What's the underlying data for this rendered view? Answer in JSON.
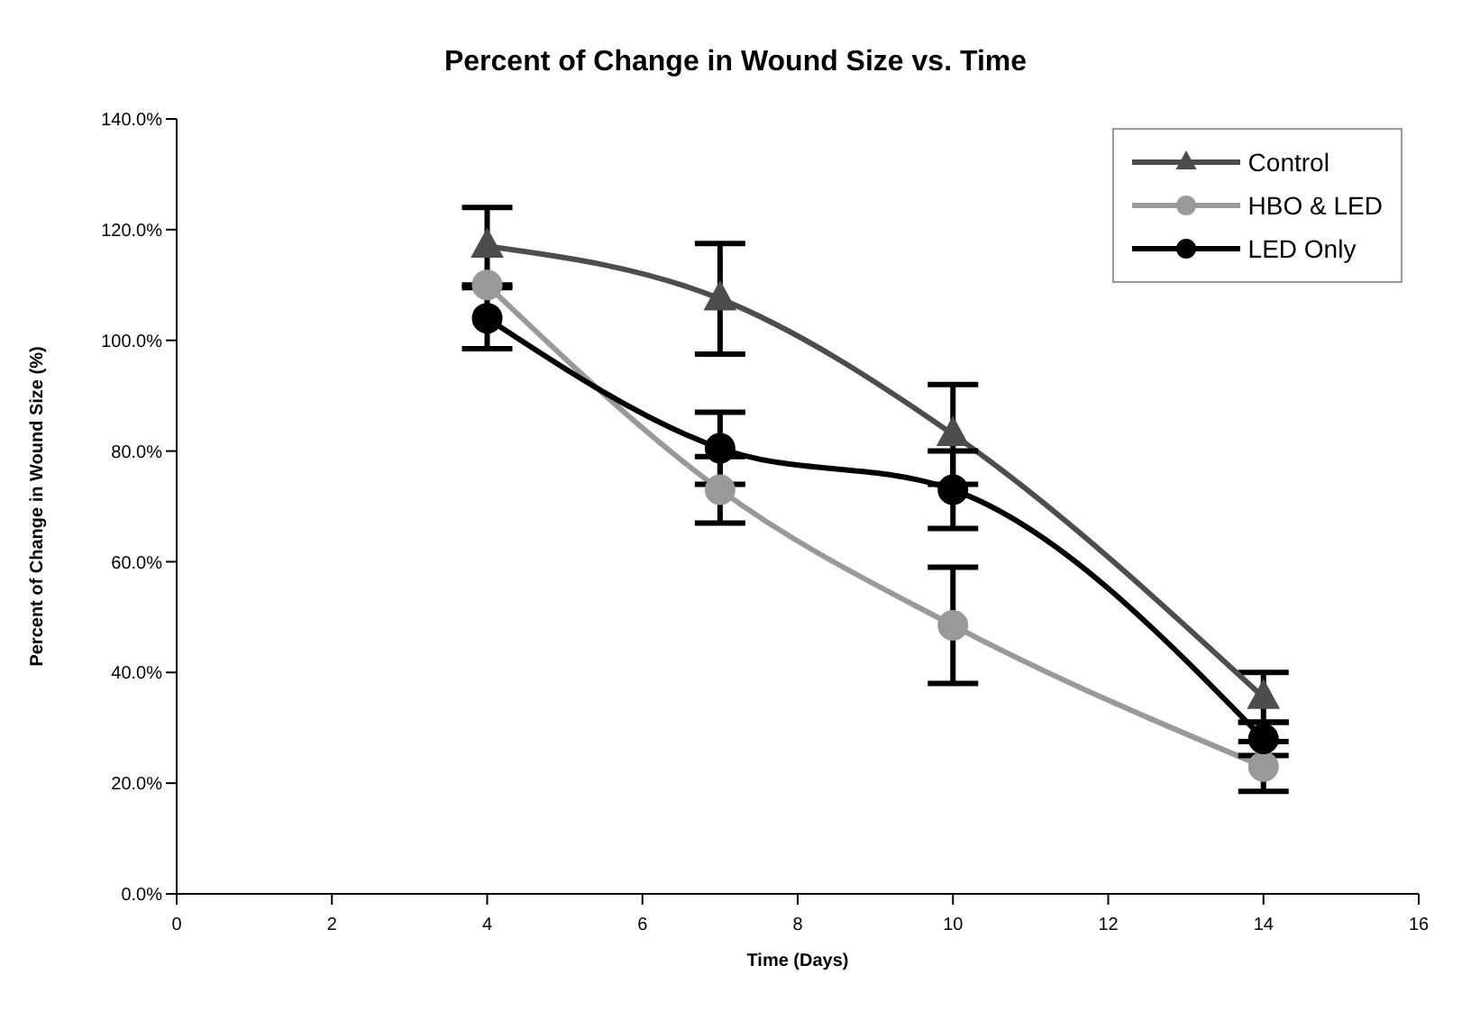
{
  "chart_data": {
    "type": "line",
    "title": "Percent of Change in Wound Size vs. Time",
    "xlabel": "Time (Days)",
    "ylabel": "Percent of Change in Wound Size (%)",
    "x": [
      4,
      7,
      10,
      14
    ],
    "series": [
      {
        "name": "Control",
        "color": "#4d4d4d",
        "marker": "triangle",
        "values": [
          117,
          107.5,
          83,
          35.5
        ],
        "errors": [
          7,
          10,
          9,
          4.5
        ]
      },
      {
        "name": "HBO & LED",
        "color": "#999999",
        "marker": "circle",
        "values": [
          110,
          73,
          48.5,
          23
        ],
        "errors": [
          null,
          6,
          10.5,
          4.5
        ]
      },
      {
        "name": "LED Only",
        "color": "#000000",
        "marker": "circle",
        "values": [
          104,
          80.5,
          73,
          28
        ],
        "errors": [
          5.5,
          6.5,
          7,
          3
        ]
      }
    ],
    "xlim": [
      0,
      16
    ],
    "xticks": [
      0,
      2,
      4,
      6,
      8,
      10,
      12,
      14,
      16
    ],
    "ylim": [
      0,
      140
    ],
    "yticks": [
      {
        "value": 0,
        "label": "0.0%"
      },
      {
        "value": 20,
        "label": "20.0%"
      },
      {
        "value": 40,
        "label": "40.0%"
      },
      {
        "value": 60,
        "label": "60.0%"
      },
      {
        "value": 80,
        "label": "80.0%"
      },
      {
        "value": 100,
        "label": "100.0%"
      },
      {
        "value": 120,
        "label": "120.0%"
      },
      {
        "value": 140,
        "label": "140.0%"
      }
    ],
    "grid": false,
    "legend": "top right",
    "line_style": "solid"
  }
}
